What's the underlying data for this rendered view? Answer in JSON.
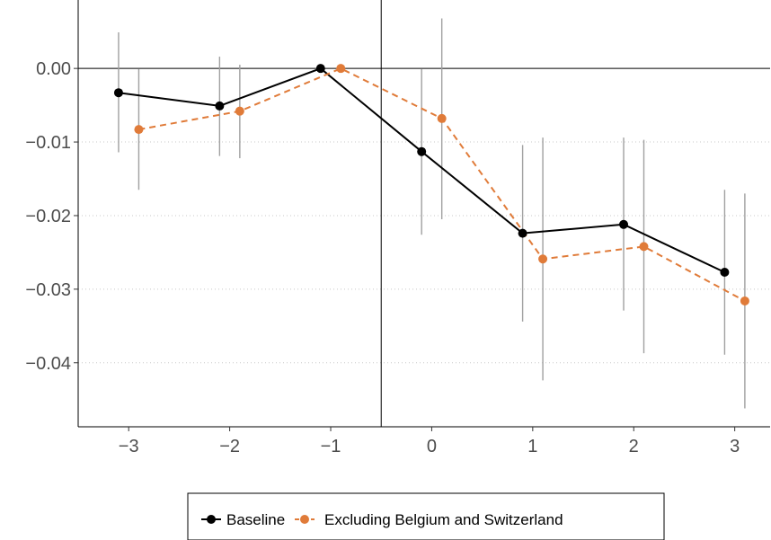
{
  "chart_data": {
    "type": "line",
    "title": "",
    "xlabel": "",
    "ylabel": "",
    "x": [
      -3,
      -2,
      -1,
      0,
      1,
      2,
      3
    ],
    "xlim": [
      -3.5,
      3.35
    ],
    "ylim": [
      -0.0487,
      0.0093
    ],
    "x_ticks": [
      "−3",
      "−2",
      "−1",
      "0",
      "1",
      "2",
      "3"
    ],
    "y_ticks": [
      {
        "value": 0.0,
        "label": "0.00"
      },
      {
        "value": -0.01,
        "label": "−0.01"
      },
      {
        "value": -0.02,
        "label": "−0.02"
      },
      {
        "value": -0.03,
        "label": "−0.03"
      },
      {
        "value": -0.04,
        "label": "−0.04"
      }
    ],
    "hline": 0,
    "vline": -0.5,
    "grid": "horizontal dotted",
    "legend_position": "bottom",
    "series": [
      {
        "name": "Baseline",
        "color": "#000000",
        "dash": "solid",
        "offset": -0.1,
        "values": [
          -0.0033,
          -0.0051,
          0.0,
          -0.0113,
          -0.0224,
          -0.0212,
          -0.0277
        ],
        "ci_low": [
          -0.0114,
          -0.0119,
          null,
          -0.0226,
          -0.0344,
          -0.0329,
          -0.0389
        ],
        "ci_high": [
          0.0049,
          0.0016,
          null,
          -0.0001,
          -0.0104,
          -0.0094,
          -0.0165
        ]
      },
      {
        "name": "Excluding Belgium and Switzerland",
        "color": "#e07b39",
        "dash": "dashed",
        "offset": 0.1,
        "values": [
          -0.0083,
          -0.0058,
          0.0,
          -0.0068,
          -0.0259,
          -0.0242,
          -0.0316
        ],
        "ci_low": [
          -0.0165,
          -0.0122,
          null,
          -0.0205,
          -0.0424,
          -0.0387,
          -0.0462
        ],
        "ci_high": [
          -0.0001,
          0.0005,
          null,
          0.0068,
          -0.0094,
          -0.0097,
          -0.017
        ]
      }
    ]
  }
}
